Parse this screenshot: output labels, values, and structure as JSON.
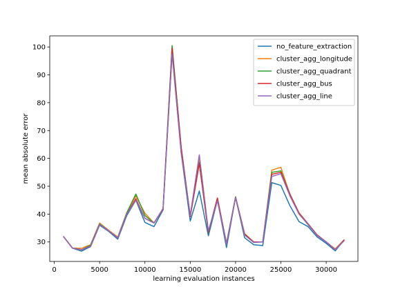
{
  "chart_data": {
    "type": "line",
    "title": "",
    "xlabel": "learning evaluation instances",
    "ylabel": "mean absolute error",
    "xlim": [
      -500,
      33500
    ],
    "ylim": [
      23,
      104
    ],
    "xticks": [
      0,
      5000,
      10000,
      15000,
      20000,
      25000,
      30000
    ],
    "yticks": [
      30,
      40,
      50,
      60,
      70,
      80,
      90,
      100
    ],
    "grid": false,
    "legend_position": "upper right",
    "x": [
      1000,
      2000,
      3000,
      4000,
      5000,
      6000,
      7000,
      8000,
      9000,
      10000,
      11000,
      12000,
      13000,
      14000,
      15000,
      16000,
      17000,
      18000,
      19000,
      20000,
      21000,
      22000,
      23000,
      24000,
      25000,
      26000,
      27000,
      28000,
      29000,
      30000,
      31000,
      32000
    ],
    "series": [
      {
        "name": "no_feature_extraction",
        "color": "#1f77b4",
        "values": [
          32,
          27.8,
          26.7,
          28.3,
          36,
          33.8,
          31,
          39.5,
          45,
          37,
          35.5,
          41.5,
          98,
          62,
          37.5,
          48.3,
          32.2,
          45,
          28,
          46,
          31.5,
          29,
          28.7,
          51.3,
          50.3,
          43,
          37.3,
          35.5,
          31.8,
          29.5,
          26.8,
          30.8
        ]
      },
      {
        "name": "cluster_agg_longitude",
        "color": "#ff7f0e",
        "values": [
          32,
          27.8,
          27.7,
          29,
          36.8,
          34.2,
          31.8,
          40.5,
          46.5,
          40.3,
          36.8,
          42,
          100,
          63.5,
          39.5,
          59.5,
          33.5,
          45.7,
          29.5,
          46.2,
          33,
          30,
          30,
          55.8,
          56.8,
          47,
          40.5,
          36.5,
          32.5,
          30,
          27.5,
          30.8
        ]
      },
      {
        "name": "cluster_agg_quadrant",
        "color": "#2ca02c",
        "values": [
          32,
          27.8,
          27.2,
          28.8,
          36.5,
          34,
          31.5,
          40.5,
          47.2,
          39.5,
          36.8,
          41.8,
          100.5,
          63.8,
          39.3,
          58.5,
          33.3,
          45.5,
          29.5,
          46.2,
          32.5,
          30,
          30,
          55,
          55.5,
          47,
          40.2,
          36.2,
          32.5,
          30,
          27.2,
          30.8
        ]
      },
      {
        "name": "cluster_agg_bus",
        "color": "#d62728",
        "values": [
          32,
          27.8,
          27.2,
          28.5,
          36.3,
          34,
          31.5,
          40,
          45.5,
          38.5,
          36.8,
          41.8,
          99.5,
          64,
          39,
          58.2,
          33.5,
          45.8,
          29.2,
          46,
          32.8,
          30,
          30,
          54.3,
          55,
          47.2,
          40.3,
          36.5,
          32.5,
          30,
          27.2,
          30.8
        ]
      },
      {
        "name": "cluster_agg_line",
        "color": "#9467bd",
        "values": [
          32,
          27.8,
          27.2,
          28.5,
          36.3,
          34,
          31.5,
          40,
          45,
          38.5,
          36.8,
          42,
          97.5,
          62,
          39.5,
          61.3,
          34,
          44.8,
          29.2,
          46,
          32.5,
          29.8,
          30,
          53.5,
          54.5,
          46.5,
          40,
          36.3,
          32.3,
          30,
          27.2,
          30.5
        ]
      }
    ]
  }
}
